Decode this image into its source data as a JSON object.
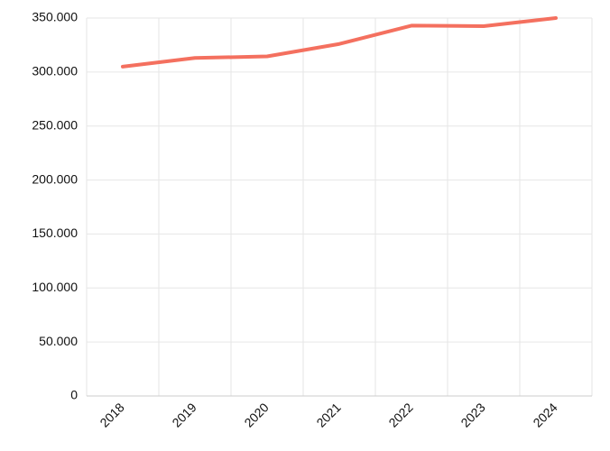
{
  "chart_data": {
    "type": "line",
    "categories": [
      "2018",
      "2019",
      "2020",
      "2021",
      "2022",
      "2023",
      "2024"
    ],
    "values": [
      305000,
      313000,
      314500,
      326000,
      343000,
      342500,
      350000
    ],
    "color": "#f4705f",
    "ylim": [
      0,
      350000
    ],
    "yticks": [
      0,
      {
        "value": 50000,
        "label": "50.000"
      },
      {
        "value": 100000,
        "label": "100.000"
      },
      {
        "value": 150000,
        "label": "150.000"
      },
      {
        "value": 200000,
        "label": "200.000"
      },
      {
        "value": 250000,
        "label": "250.000"
      },
      {
        "value": 300000,
        "label": "300.000"
      },
      {
        "value": 350000,
        "label": "350.000"
      }
    ],
    "grid": true
  }
}
